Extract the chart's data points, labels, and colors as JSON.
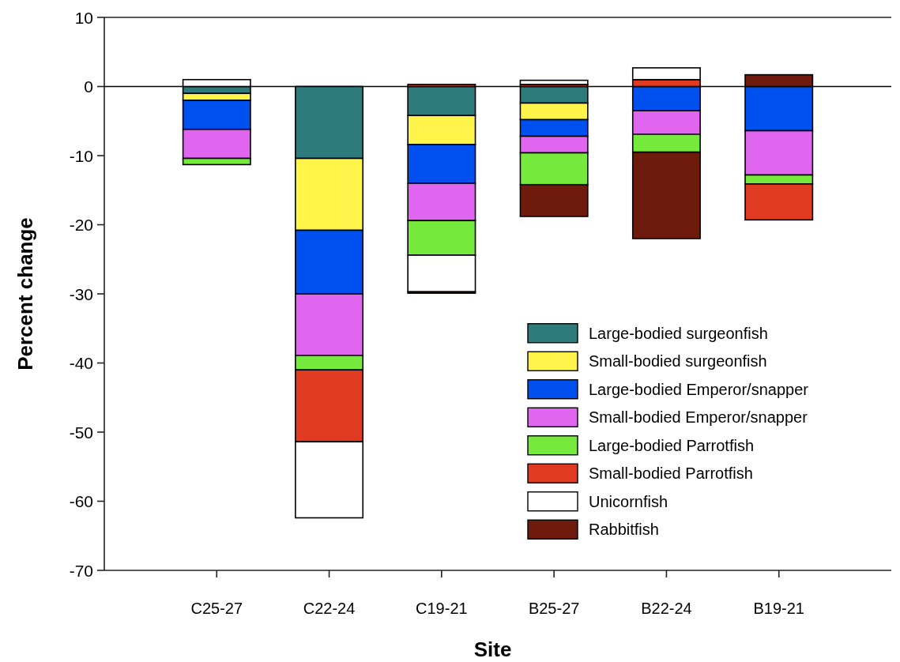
{
  "chart_data": {
    "type": "bar",
    "stacked": true,
    "xlabel": "Site",
    "ylabel": "Percent change",
    "categories": [
      "C25-27",
      "C22-24",
      "C19-21",
      "B25-27",
      "B22-24",
      "B19-21"
    ],
    "ylim": [
      -70,
      10
    ],
    "yticks": [
      -70,
      -60,
      -50,
      -40,
      -30,
      -20,
      -10,
      0,
      10
    ],
    "ref_lines": [
      {
        "axis": "y",
        "value": 0,
        "color": "#000000"
      }
    ],
    "legend": "bottom right",
    "series": [
      {
        "name": "Large-bodied surgeonfish",
        "color": "#2e7b7b",
        "values": [
          -1.0,
          -10.4,
          -4.2,
          -2.4,
          null,
          null
        ]
      },
      {
        "name": "Small-bodied surgeonfish",
        "color": "#fff44a",
        "values": [
          -1.0,
          -10.4,
          -4.2,
          -2.4,
          null,
          null
        ]
      },
      {
        "name": "Large-bodied Emperor/snapper",
        "color": "#0050f0",
        "values": [
          -4.2,
          -9.2,
          -5.6,
          -2.4,
          -3.5,
          -6.4
        ]
      },
      {
        "name": "Small-bodied Emperor/snapper",
        "color": "#e066f0",
        "values": [
          -4.2,
          -8.9,
          -5.4,
          -2.4,
          -3.4,
          -6.4
        ]
      },
      {
        "name": "Large-bodied Parrotfish",
        "color": "#76ea3c",
        "values": [
          -0.9,
          -2.1,
          -5.0,
          -4.6,
          -2.6,
          -1.3
        ]
      },
      {
        "name": "Small-bodied Parrotfish",
        "color": "#e03a22",
        "values": [
          null,
          -10.4,
          0.3,
          0.3,
          1.0,
          -5.2
        ]
      },
      {
        "name": "Unicornfish",
        "color": "#ffffff",
        "values": [
          1.0,
          -11.0,
          -5.3,
          0.6,
          1.7,
          null
        ]
      },
      {
        "name": "Rabbitfish",
        "color": "#6e1a0c",
        "values": [
          null,
          null,
          -0.2,
          -4.6,
          -12.5,
          1.7
        ]
      }
    ]
  }
}
